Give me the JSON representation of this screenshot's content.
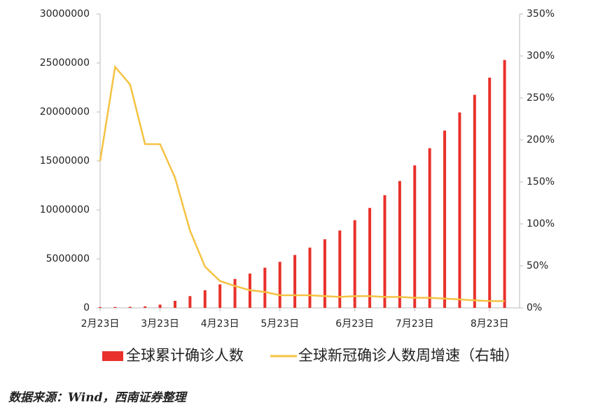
{
  "chart_data": {
    "type": "bar_line",
    "categories": [
      "2月23日",
      null,
      null,
      null,
      "3月23日",
      null,
      null,
      null,
      "4月23日",
      null,
      null,
      null,
      "5月23日",
      null,
      null,
      null,
      null,
      "6月23日",
      null,
      null,
      null,
      "7月23日",
      null,
      null,
      null,
      null,
      "8月23日",
      null
    ],
    "series": [
      {
        "name": "全球累计确诊人数",
        "color": "#e8312a",
        "type": "bar",
        "values": [
          80000,
          90000,
          105000,
          150000,
          330000,
          720000,
          1200000,
          1800000,
          2400000,
          2950000,
          3500000,
          4100000,
          4700000,
          5400000,
          6150000,
          7000000,
          7900000,
          8950000,
          10200000,
          11500000,
          12950000,
          14550000,
          16300000,
          18100000,
          19950000,
          21750000,
          23500000,
          25300000
        ]
      },
      {
        "name": "全球新冠确诊人数周增速（右轴）",
        "color": "#f5c242",
        "type": "line",
        "axis": "y2",
        "values": [
          175,
          287,
          266,
          195,
          195,
          155,
          92,
          49,
          32,
          26,
          21,
          19,
          15,
          15,
          15,
          14,
          13,
          14,
          14,
          13,
          13,
          12,
          12,
          11,
          10,
          9,
          8,
          8
        ]
      }
    ],
    "ylim": [
      0,
      30000000
    ],
    "yticks": [
      0,
      5000000,
      10000000,
      15000000,
      20000000,
      25000000,
      30000000
    ],
    "y2lim": [
      0,
      350
    ],
    "y2ticks": [
      {
        "value": 0,
        "label": "0%"
      },
      {
        "value": 50,
        "label": "50%"
      },
      {
        "value": 100,
        "label": "100%"
      },
      {
        "value": 150,
        "label": "150%"
      },
      {
        "value": 200,
        "label": "200%"
      },
      {
        "value": 250,
        "label": "250%"
      },
      {
        "value": 300,
        "label": "300%"
      },
      {
        "value": 350,
        "label": "350%"
      }
    ],
    "legend": "bottom"
  },
  "source": "数据来源：Wind，西南证券整理"
}
